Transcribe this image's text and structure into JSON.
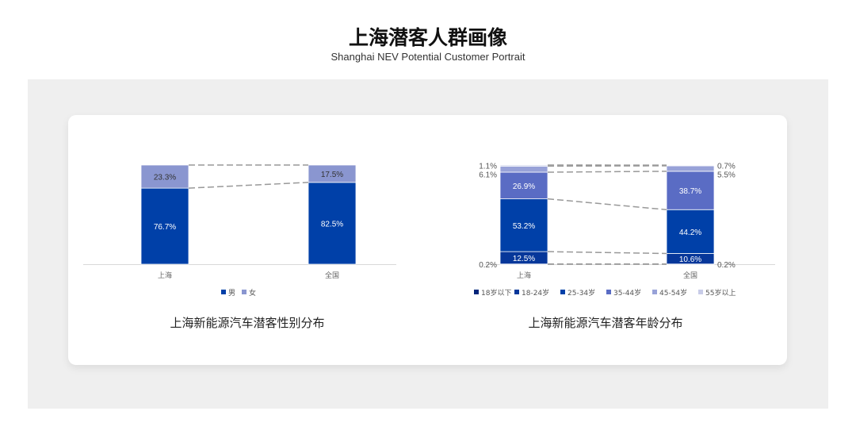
{
  "header": {
    "title": "上海潜客人群画像",
    "subtitle": "Shanghai NEV Potential Customer Portrait"
  },
  "chart_data": [
    {
      "type": "bar",
      "stacked": true,
      "title": "上海新能源汽车潜客性别分布",
      "categories": [
        "上海",
        "全国"
      ],
      "series": [
        {
          "name": "男",
          "values": [
            76.7,
            82.5
          ],
          "color": "#0040A8",
          "label_color": "#ffffff"
        },
        {
          "name": "女",
          "values": [
            23.3,
            17.5
          ],
          "color": "#8A96D0",
          "label_color": "#333333"
        }
      ],
      "ylim": [
        0,
        100
      ],
      "unit": "%",
      "legend": "bottom",
      "grid": false
    },
    {
      "type": "bar",
      "stacked": true,
      "title": "上海新能源汽车潜客年龄分布",
      "categories": [
        "上海",
        "全国"
      ],
      "series": [
        {
          "name": "18岁以下",
          "values": [
            0.2,
            0.2
          ],
          "color": "#00257A",
          "label_color": "#555555"
        },
        {
          "name": "18-24岁",
          "values": [
            12.5,
            10.6
          ],
          "color": "#06379A",
          "label_color": "#ffffff"
        },
        {
          "name": "25-34岁",
          "values": [
            53.2,
            44.2
          ],
          "color": "#0040A8",
          "label_color": "#ffffff"
        },
        {
          "name": "35-44岁",
          "values": [
            26.9,
            38.7
          ],
          "color": "#5A6CC4",
          "label_color": "#ffffff"
        },
        {
          "name": "45-54岁",
          "values": [
            6.1,
            5.5
          ],
          "color": "#98A2D8",
          "label_color": "#444444"
        },
        {
          "name": "55岁以上",
          "values": [
            1.1,
            0.7
          ],
          "color": "#C8CCE8",
          "label_color": "#444444"
        }
      ],
      "ylim": [
        0,
        100
      ],
      "unit": "%",
      "legend": "bottom",
      "grid": false
    }
  ]
}
